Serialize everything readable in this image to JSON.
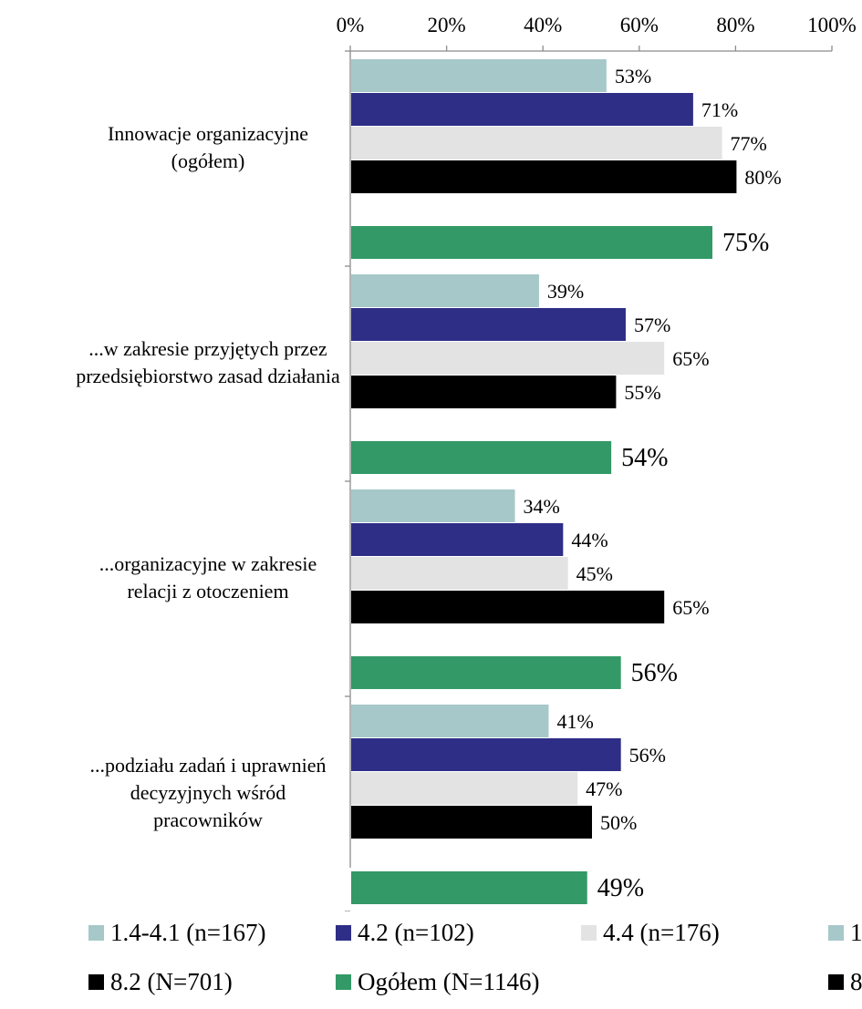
{
  "chart_data": {
    "type": "bar",
    "orientation": "horizontal",
    "x_ticks": [
      "0%",
      "20%",
      "40%",
      "60%",
      "80%",
      "100%"
    ],
    "xlim": [
      0,
      100
    ],
    "categories": [
      "Innowacje organizacyjne (ogółem)",
      "...w zakresie przyjętych przez przedsiębiorstwo zasad działania",
      "...organizacyjne w zakresie relacji z otoczeniem",
      "...podziału zadań i uprawnień decyzyjnych wśród pracowników"
    ],
    "category_lines": [
      [
        "Innowacje organizacyjne",
        "(ogółem)"
      ],
      [
        "...w zakresie przyjętych przez",
        "przedsiębiorstwo zasad działania"
      ],
      [
        "...organizacyjne w zakresie",
        "relacji z otoczeniem"
      ],
      [
        "...podziału zadań i uprawnień",
        "decyzyjnych wśród",
        "pracowników"
      ]
    ],
    "series": [
      {
        "name": "1.4-4.1 (n=167)",
        "color": "#a6c8c9",
        "values": [
          53,
          39,
          34,
          41
        ],
        "labels": [
          "53%",
          "39%",
          "34%",
          "41%"
        ]
      },
      {
        "name": "4.2 (n=102)",
        "color": "#2e2e87",
        "values": [
          71,
          57,
          44,
          56
        ],
        "labels": [
          "71%",
          "57%",
          "44%",
          "56%"
        ]
      },
      {
        "name": "4.4 (n=176)",
        "color": "#e3e3e3",
        "values": [
          77,
          65,
          45,
          47
        ],
        "labels": [
          "77%",
          "65%",
          "45%",
          "47%"
        ]
      },
      {
        "name": "8.2 (N=701)",
        "color": "#000000",
        "values": [
          80,
          55,
          65,
          50
        ],
        "labels": [
          "80%",
          "55%",
          "65%",
          "50%"
        ]
      },
      {
        "name": "Ogółem (N=1146)",
        "color": "#339966",
        "values": [
          75,
          54,
          56,
          49
        ],
        "labels": [
          "75%",
          "54%",
          "56%",
          "49%"
        ]
      }
    ],
    "legend_position": "bottom",
    "grid": false
  },
  "legend": {
    "row1": [
      {
        "label": "1.4-4.1 (n=167)",
        "color": "#a6c8c9"
      },
      {
        "label": "4.2 (n=102)",
        "color": "#2e2e87"
      },
      {
        "label": "4.4 (n=176)",
        "color": "#e3e3e3"
      },
      {
        "label": "1",
        "color": "#a6c8c9"
      }
    ],
    "row2": [
      {
        "label": "8.2 (N=701)",
        "color": "#000000"
      },
      {
        "label": "Ogółem (N=1146)",
        "color": "#339966"
      },
      {
        "label": "8",
        "color": "#000000"
      }
    ]
  }
}
